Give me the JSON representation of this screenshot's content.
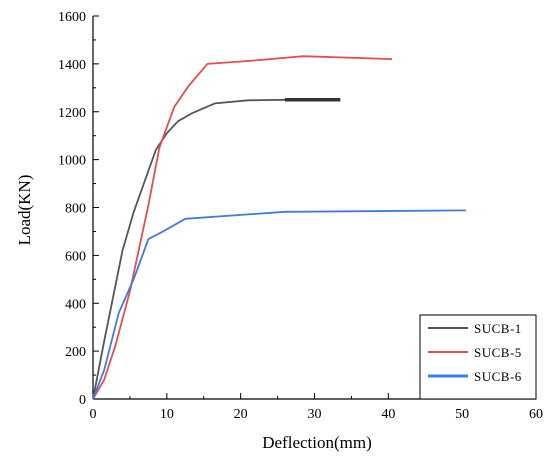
{
  "chart_data": {
    "type": "line",
    "title": "",
    "xlabel": "Deflection(mm)",
    "ylabel": "Load(KN)",
    "xlim": [
      0,
      60
    ],
    "ylim": [
      0,
      1600
    ],
    "x_ticks": [
      "0",
      "10",
      "20",
      "30",
      "40",
      "50",
      "60"
    ],
    "y_ticks": [
      "0",
      "200",
      "400",
      "600",
      "800",
      "1000",
      "1200",
      "1400",
      "1600"
    ],
    "grid": false,
    "legend_position": "bottom-right",
    "series": [
      {
        "name": "SUCB-1",
        "color": "#555555",
        "points": [
          [
            0,
            0
          ],
          [
            1.5,
            240
          ],
          [
            4,
            620
          ],
          [
            5.5,
            780
          ],
          [
            8.5,
            1040
          ],
          [
            10,
            1110
          ],
          [
            11.5,
            1160
          ],
          [
            13.5,
            1195
          ],
          [
            16.5,
            1235
          ],
          [
            21,
            1248
          ],
          [
            26,
            1250
          ],
          [
            33.5,
            1250
          ]
        ],
        "thick_segment": [
          26,
          33.5
        ]
      },
      {
        "name": "SUCB-5",
        "color": "#e84c4c",
        "points": [
          [
            0,
            0
          ],
          [
            1.5,
            80
          ],
          [
            3,
            220
          ],
          [
            5,
            450
          ],
          [
            7.5,
            810
          ],
          [
            9,
            1050
          ],
          [
            11,
            1220
          ],
          [
            13,
            1310
          ],
          [
            15.5,
            1400
          ],
          [
            21,
            1412
          ],
          [
            28.5,
            1432
          ],
          [
            40.5,
            1420
          ]
        ]
      },
      {
        "name": "SUCB-6",
        "color": "#3b7ddd",
        "points": [
          [
            0,
            0
          ],
          [
            1.5,
            120
          ],
          [
            3.5,
            360
          ],
          [
            5.5,
            500
          ],
          [
            7.5,
            668
          ],
          [
            9.5,
            700
          ],
          [
            12.5,
            753
          ],
          [
            26,
            782
          ],
          [
            50.5,
            788
          ]
        ]
      }
    ]
  }
}
